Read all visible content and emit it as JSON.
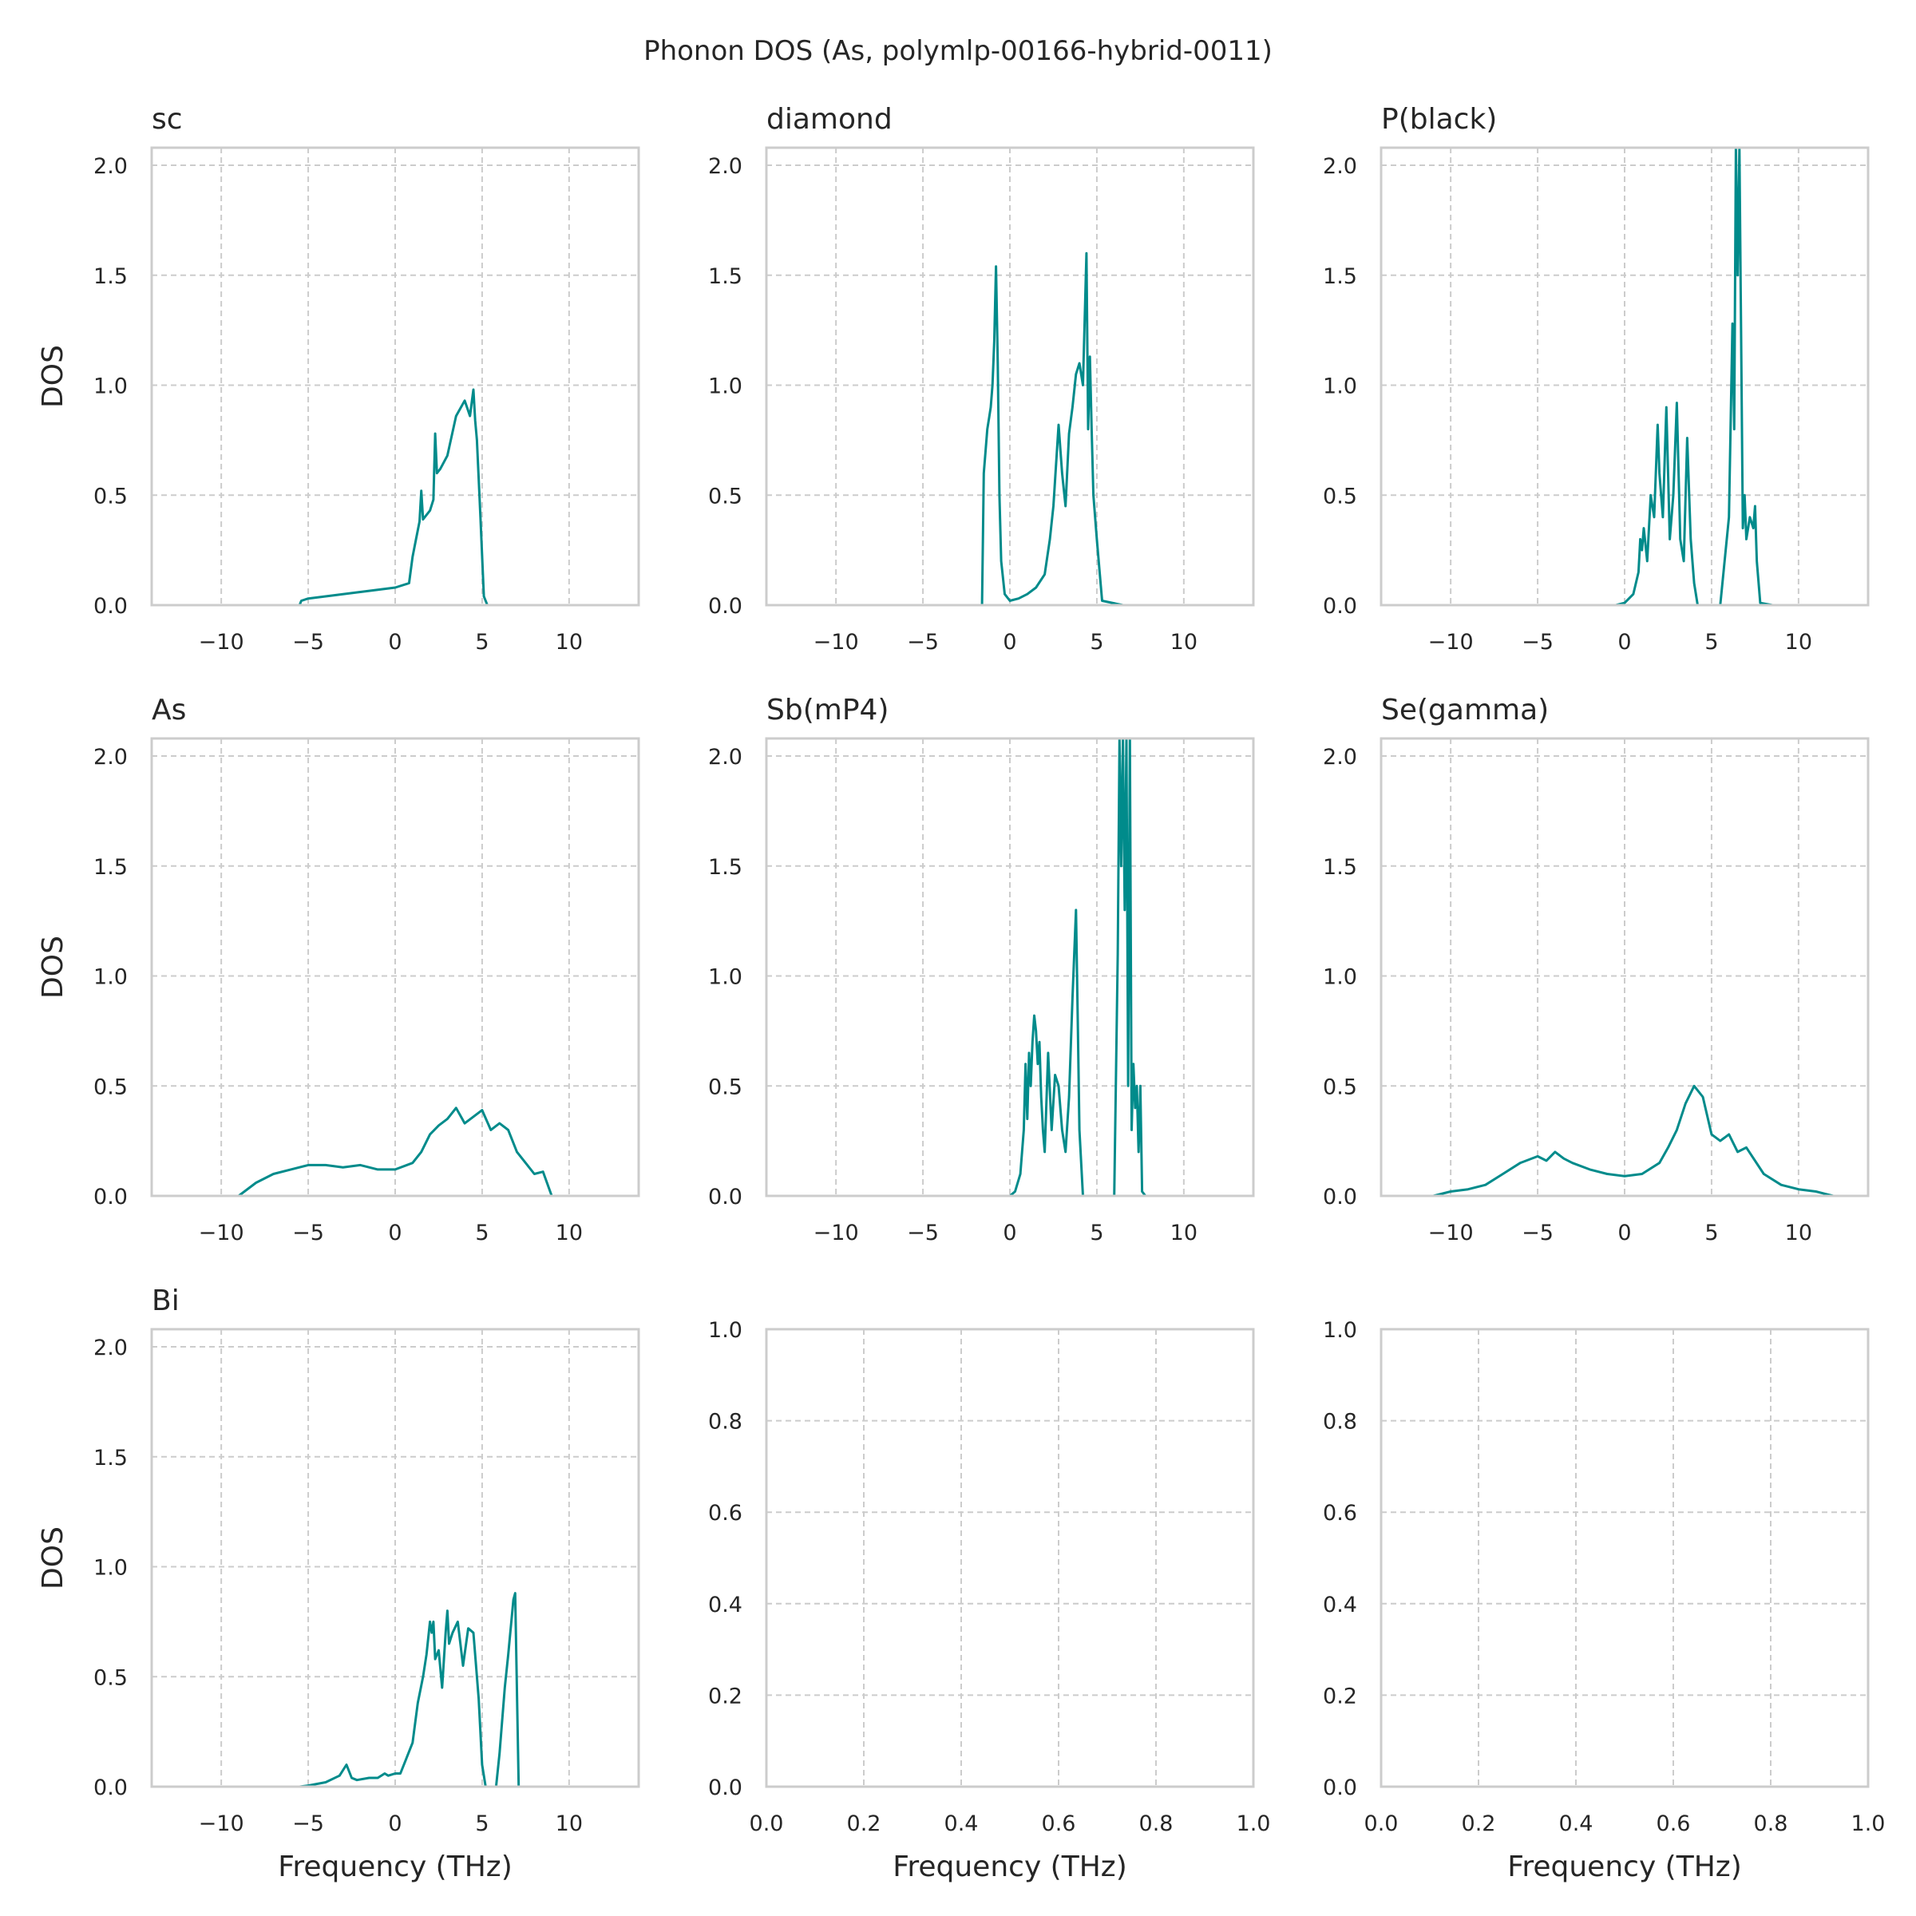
{
  "figure": {
    "suptitle": "Phonon DOS (As, polymlp-00166-hybrid-0011)",
    "line_color": "#008b8b"
  },
  "chart_data": [
    {
      "type": "line",
      "title": "sc",
      "xlabel": "",
      "ylabel": "DOS",
      "xlim": [
        -14,
        14
      ],
      "ylim": [
        0,
        2.08
      ],
      "xticks": [
        -10,
        -5,
        0,
        5,
        10
      ],
      "yticks": [
        0.0,
        0.5,
        1.0,
        1.5,
        2.0
      ],
      "grid": true,
      "series": [
        {
          "x": [
            -7,
            -6.5,
            -5.5,
            -5.4,
            -5,
            -4.5,
            -4,
            -3,
            -2,
            -1,
            0,
            0.8,
            1,
            1.2,
            1.4,
            1.5,
            1.6,
            1.8,
            2,
            2.2,
            2.3,
            2.4,
            2.6,
            3,
            3.5,
            4,
            4.3,
            4.5,
            4.6,
            4.7,
            4.9,
            5.1,
            5.3,
            6.5
          ],
          "y": [
            0,
            0,
            0,
            0.02,
            0.03,
            0.035,
            0.04,
            0.05,
            0.06,
            0.07,
            0.08,
            0.1,
            0.22,
            0.3,
            0.38,
            0.52,
            0.39,
            0.41,
            0.43,
            0.48,
            0.78,
            0.6,
            0.62,
            0.68,
            0.86,
            0.93,
            0.86,
            0.98,
            0.84,
            0.75,
            0.4,
            0.04,
            0,
            0
          ]
        }
      ]
    },
    {
      "type": "line",
      "title": "diamond",
      "xlabel": "",
      "ylabel": "",
      "xlim": [
        -14,
        14
      ],
      "ylim": [
        0,
        2.08
      ],
      "xticks": [
        -10,
        -5,
        0,
        5,
        10
      ],
      "yticks": [
        0.0,
        0.5,
        1.0,
        1.5,
        2.0
      ],
      "grid": true,
      "series": [
        {
          "x": [
            -2.5,
            -1.6,
            -1.5,
            -1.4,
            -1.3,
            -1.2,
            -1.1,
            -1.0,
            -0.9,
            -0.8,
            -0.7,
            -0.6,
            -0.5,
            -0.3,
            0,
            0.5,
            1,
            1.5,
            2,
            2.3,
            2.5,
            2.8,
            3,
            3.2,
            3.4,
            3.6,
            3.8,
            4,
            4.2,
            4.4,
            4.5,
            4.6,
            4.7,
            4.8,
            5,
            5.3,
            6.5
          ],
          "y": [
            0,
            0,
            0.6,
            0.7,
            0.8,
            0.85,
            0.9,
            1.0,
            1.2,
            1.54,
            1.1,
            0.5,
            0.2,
            0.05,
            0.02,
            0.03,
            0.05,
            0.08,
            0.14,
            0.3,
            0.45,
            0.82,
            0.6,
            0.45,
            0.78,
            0.9,
            1.05,
            1.1,
            1.0,
            1.6,
            0.8,
            1.13,
            0.8,
            0.5,
            0.3,
            0.02,
            0
          ]
        }
      ]
    },
    {
      "type": "line",
      "title": "P(black)",
      "xlabel": "",
      "ylabel": "",
      "xlim": [
        -14,
        14
      ],
      "ylim": [
        0,
        2.08
      ],
      "xticks": [
        -10,
        -5,
        0,
        5,
        10
      ],
      "yticks": [
        0.0,
        0.5,
        1.0,
        1.5,
        2.0
      ],
      "grid": true,
      "series": [
        {
          "x": [
            -1,
            -0.5,
            0,
            0.5,
            0.8,
            0.9,
            1.0,
            1.1,
            1.3,
            1.5,
            1.7,
            1.9,
            2.0,
            2.2,
            2.4,
            2.6,
            2.8,
            3.0,
            3.2,
            3.4,
            3.6,
            3.8,
            4.0,
            4.2,
            5.5,
            6.0,
            6.2,
            6.3,
            6.4,
            6.5,
            6.6,
            6.7,
            6.8,
            6.9,
            7.0,
            7.2,
            7.4,
            7.5,
            7.6,
            7.8,
            8.5
          ],
          "y": [
            0,
            0,
            0.01,
            0.05,
            0.15,
            0.3,
            0.25,
            0.35,
            0.2,
            0.5,
            0.4,
            0.82,
            0.6,
            0.4,
            0.9,
            0.3,
            0.5,
            0.92,
            0.3,
            0.2,
            0.76,
            0.3,
            0.1,
            0,
            0,
            0.4,
            1.28,
            0.8,
            2.08,
            1.5,
            2.08,
            1.2,
            0.35,
            0.5,
            0.3,
            0.4,
            0.35,
            0.45,
            0.2,
            0.01,
            0
          ]
        }
      ]
    },
    {
      "type": "line",
      "title": "As",
      "xlabel": "",
      "ylabel": "DOS",
      "xlim": [
        -14,
        14
      ],
      "ylim": [
        0,
        2.08
      ],
      "xticks": [
        -10,
        -5,
        0,
        5,
        10
      ],
      "yticks": [
        0.0,
        0.5,
        1.0,
        1.5,
        2.0
      ],
      "grid": true,
      "series": [
        {
          "x": [
            -11.5,
            -9,
            -8,
            -7,
            -6,
            -5,
            -4,
            -3,
            -2,
            -1,
            0,
            1,
            1.5,
            2,
            2.5,
            3,
            3.5,
            4,
            4.5,
            5,
            5.5,
            6,
            6.5,
            7,
            7.5,
            8,
            8.5,
            9,
            10.5
          ],
          "y": [
            0,
            0,
            0.06,
            0.1,
            0.12,
            0.14,
            0.14,
            0.13,
            0.14,
            0.12,
            0.12,
            0.15,
            0.2,
            0.28,
            0.32,
            0.35,
            0.4,
            0.33,
            0.36,
            0.39,
            0.3,
            0.33,
            0.3,
            0.2,
            0.15,
            0.1,
            0.11,
            0,
            0
          ]
        }
      ]
    },
    {
      "type": "line",
      "title": "Sb(mP4)",
      "xlabel": "",
      "ylabel": "",
      "xlim": [
        -14,
        14
      ],
      "ylim": [
        0,
        2.08
      ],
      "xticks": [
        -10,
        -5,
        0,
        5,
        10
      ],
      "yticks": [
        0.0,
        0.5,
        1.0,
        1.5,
        2.0
      ],
      "grid": true,
      "series": [
        {
          "x": [
            -0.5,
            0,
            0.3,
            0.6,
            0.8,
            0.9,
            1.0,
            1.1,
            1.2,
            1.3,
            1.4,
            1.5,
            1.6,
            1.7,
            1.8,
            1.9,
            2.0,
            2.2,
            2.4,
            2.6,
            2.8,
            3.0,
            3.2,
            3.4,
            3.6,
            3.8,
            3.9,
            4.0,
            4.2,
            6.0,
            6.2,
            6.3,
            6.4,
            6.5,
            6.6,
            6.7,
            6.8,
            6.9,
            7.0,
            7.1,
            7.2,
            7.3,
            7.4,
            7.5,
            7.6,
            7.8,
            8.2
          ],
          "y": [
            0,
            0,
            0.02,
            0.1,
            0.3,
            0.6,
            0.35,
            0.65,
            0.5,
            0.7,
            0.82,
            0.75,
            0.6,
            0.7,
            0.45,
            0.3,
            0.2,
            0.65,
            0.3,
            0.55,
            0.5,
            0.3,
            0.2,
            0.45,
            0.9,
            1.3,
            0.8,
            0.3,
            0,
            0,
            1.1,
            2.08,
            1.5,
            2.08,
            1.3,
            2.08,
            0.5,
            2.08,
            0.3,
            0.6,
            0.4,
            0.5,
            0.2,
            0.5,
            0.02,
            0,
            0
          ]
        }
      ]
    },
    {
      "type": "line",
      "title": "Se(gamma)",
      "xlabel": "",
      "ylabel": "",
      "xlim": [
        -14,
        14
      ],
      "ylim": [
        0,
        2.08
      ],
      "xticks": [
        -10,
        -5,
        0,
        5,
        10
      ],
      "yticks": [
        0.0,
        0.5,
        1.0,
        1.5,
        2.0
      ],
      "grid": true,
      "series": [
        {
          "x": [
            -13.5,
            -11,
            -10,
            -9,
            -8,
            -7,
            -6,
            -5,
            -4.5,
            -4,
            -3.5,
            -3,
            -2,
            -1,
            0,
            1,
            2,
            2.5,
            3,
            3.5,
            4,
            4.5,
            5,
            5.5,
            6,
            6.5,
            7,
            8,
            9,
            10,
            11,
            12,
            13.8
          ],
          "y": [
            0,
            0,
            0.02,
            0.03,
            0.05,
            0.1,
            0.15,
            0.18,
            0.16,
            0.2,
            0.17,
            0.15,
            0.12,
            0.1,
            0.09,
            0.1,
            0.15,
            0.22,
            0.3,
            0.42,
            0.5,
            0.45,
            0.28,
            0.25,
            0.28,
            0.2,
            0.22,
            0.1,
            0.05,
            0.03,
            0.02,
            0,
            0
          ]
        }
      ]
    },
    {
      "type": "line",
      "title": "Bi",
      "xlabel": "Frequency (THz)",
      "ylabel": "DOS",
      "xlim": [
        -14,
        14
      ],
      "ylim": [
        0,
        2.08
      ],
      "xticks": [
        -10,
        -5,
        0,
        5,
        10
      ],
      "yticks": [
        0.0,
        0.5,
        1.0,
        1.5,
        2.0
      ],
      "grid": true,
      "series": [
        {
          "x": [
            -6,
            -5.5,
            -5,
            -4,
            -3.2,
            -2.8,
            -2.5,
            -2.2,
            -1.5,
            -1,
            -0.6,
            -0.4,
            0,
            0.3,
            0.5,
            1,
            1.3,
            1.6,
            1.8,
            2.0,
            2.1,
            2.2,
            2.3,
            2.5,
            2.7,
            2.9,
            3.0,
            3.1,
            3.3,
            3.6,
            3.9,
            4.2,
            4.5,
            4.8,
            5.0,
            5.2,
            5.8,
            6.0,
            6.3,
            6.5,
            6.8,
            6.9,
            7.1,
            7.5,
            8.2
          ],
          "y": [
            0,
            0,
            0.005,
            0.02,
            0.05,
            0.1,
            0.04,
            0.03,
            0.04,
            0.04,
            0.06,
            0.05,
            0.06,
            0.06,
            0.1,
            0.2,
            0.38,
            0.5,
            0.6,
            0.75,
            0.7,
            0.75,
            0.58,
            0.62,
            0.45,
            0.7,
            0.8,
            0.65,
            0.7,
            0.75,
            0.55,
            0.72,
            0.7,
            0.4,
            0.1,
            0,
            0,
            0.15,
            0.45,
            0.6,
            0.85,
            0.88,
            0,
            0,
            0
          ]
        }
      ]
    },
    {
      "type": "line",
      "title": "",
      "xlabel": "Frequency (THz)",
      "ylabel": "",
      "xlim": [
        0,
        1
      ],
      "ylim": [
        0,
        1
      ],
      "xticks": [
        0.0,
        0.2,
        0.4,
        0.6,
        0.8,
        1.0
      ],
      "yticks": [
        0.0,
        0.2,
        0.4,
        0.6,
        0.8,
        1.0
      ],
      "grid": true,
      "series": []
    },
    {
      "type": "line",
      "title": "",
      "xlabel": "Frequency (THz)",
      "ylabel": "",
      "xlim": [
        0,
        1
      ],
      "ylim": [
        0,
        1
      ],
      "xticks": [
        0.0,
        0.2,
        0.4,
        0.6,
        0.8,
        1.0
      ],
      "yticks": [
        0.0,
        0.2,
        0.4,
        0.6,
        0.8,
        1.0
      ],
      "grid": true,
      "series": []
    }
  ]
}
